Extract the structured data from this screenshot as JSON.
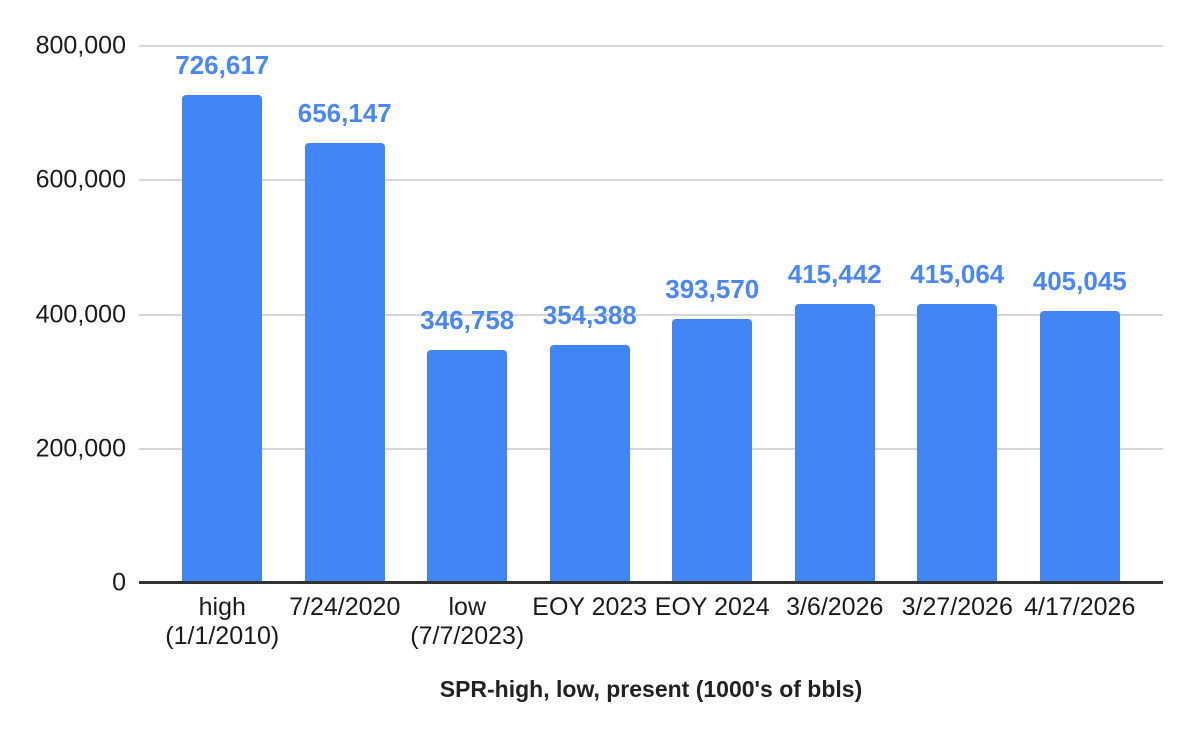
{
  "chart_data": {
    "type": "bar",
    "title": "SPR-high, low, present (1000's of bbls)",
    "xlabel": "SPR-high, low, present (1000's of bbls)",
    "ylabel": "",
    "categories": [
      [
        "high",
        "(1/1/2010)"
      ],
      [
        "7/24/2020"
      ],
      [
        "low",
        "(7/7/2023)"
      ],
      [
        "EOY 2023"
      ],
      [
        "EOY 2024"
      ],
      [
        "3/6/2026"
      ],
      [
        "3/27/2026"
      ],
      [
        "4/17/2026"
      ]
    ],
    "values": [
      726617,
      656147,
      346758,
      354388,
      393570,
      415442,
      415064,
      405045
    ],
    "value_labels": [
      "726,617",
      "656,147",
      "346,758",
      "354,388",
      "393,570",
      "415,442",
      "415,064",
      "405,045"
    ],
    "ylim": [
      0,
      800000
    ],
    "y_ticks": [
      {
        "value": 800000,
        "label": "800,000"
      },
      {
        "value": 600000,
        "label": "600,000"
      },
      {
        "value": 400000,
        "label": "400,000"
      },
      {
        "value": 200000,
        "label": "200,000"
      },
      {
        "value": 0,
        "label": "0"
      }
    ],
    "grid": true,
    "legend": "none",
    "colors": {
      "bar": "#4285f4",
      "data_label": "#4a87f2",
      "gridline": "#d6d6d6",
      "axis_line": "#333333",
      "tick_text": "#1a1a1a",
      "title_text": "#212121",
      "background": "#ffffff"
    }
  }
}
